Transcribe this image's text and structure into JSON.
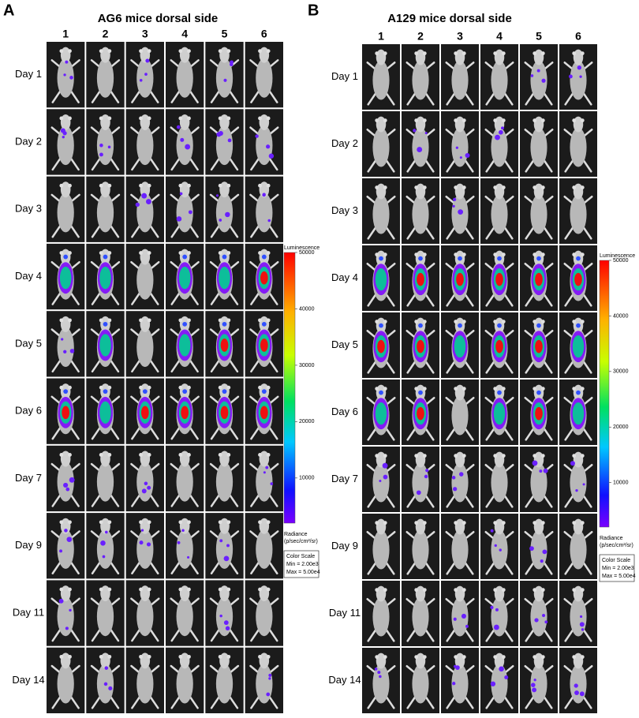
{
  "figure": {
    "panels": [
      {
        "label": "A",
        "title": "AG6 mice dorsal side",
        "columns": [
          "1",
          "2",
          "3",
          "4",
          "5",
          "6"
        ],
        "rows": [
          "Day 1",
          "Day 2",
          "Day 3",
          "Day 4",
          "Day 5",
          "Day 6",
          "Day 7",
          "Day 9",
          "Day 11",
          "Day 14"
        ],
        "colorbar": {
          "title": "Luminescence",
          "range": [
            2000,
            50000
          ],
          "ticks": [
            10000,
            20000,
            30000,
            40000,
            50000
          ],
          "unit_lines": [
            "Radiance",
            "(p/sec/cm²/sr)"
          ],
          "scale_lines": [
            "Color Scale",
            "Min = 2.00e3",
            "Max = 5.00e4"
          ]
        }
      },
      {
        "label": "B",
        "title": "A129 mice dorsal side",
        "columns": [
          "1",
          "2",
          "3",
          "4",
          "5",
          "6"
        ],
        "rows": [
          "Day 1",
          "Day 2",
          "Day 3",
          "Day 4",
          "Day 5",
          "Day 6",
          "Day 7",
          "Day 9",
          "Day 11",
          "Day 14"
        ],
        "colorbar": {
          "title": "Luminescence",
          "range": [
            2000,
            50000
          ],
          "ticks": [
            10000,
            20000,
            30000,
            40000,
            50000
          ],
          "unit_lines": [
            "Radiance",
            "(p/sec/cm²/sr)"
          ],
          "scale_lines": [
            "Color Scale",
            "Min = 2.00e3",
            "Max = 5.00e4"
          ]
        }
      }
    ]
  }
}
